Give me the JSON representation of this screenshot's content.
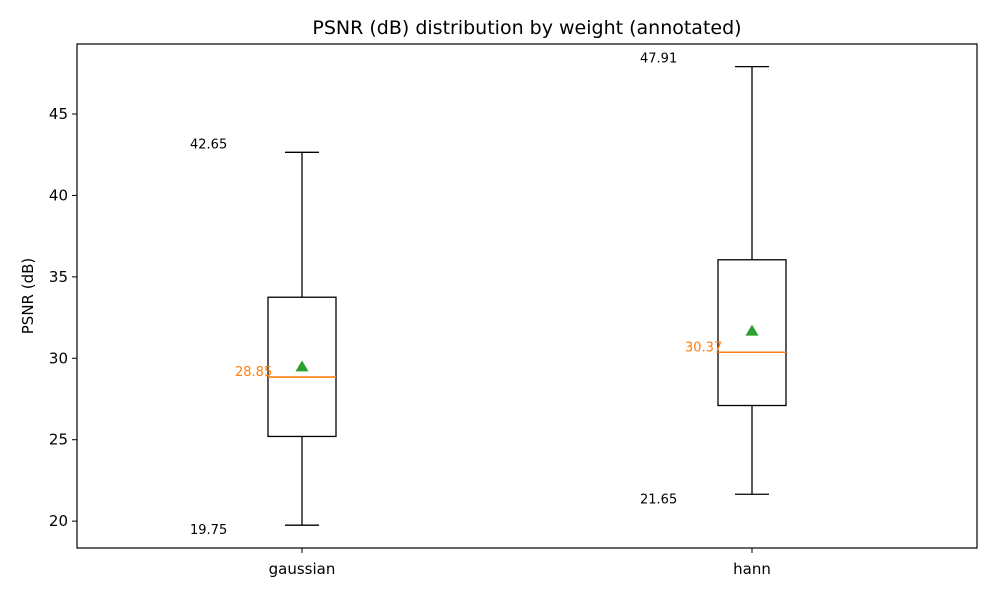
{
  "chart_data": {
    "type": "box",
    "title": "PSNR (dB) distribution by weight (annotated)",
    "ylabel": "PSNR (dB)",
    "xlabel": "",
    "ylim": [
      18.35,
      49.3
    ],
    "yticks": [
      20,
      25,
      30,
      35,
      40,
      45
    ],
    "categories": [
      "gaussian",
      "hann"
    ],
    "boxes": [
      {
        "label": "gaussian",
        "whisker_low": 19.75,
        "q1": 25.2,
        "median": 28.85,
        "q3": 33.75,
        "whisker_high": 42.65,
        "mean": 29.5,
        "annotations": {
          "max": "42.65",
          "min": "19.75",
          "median": "28.85"
        }
      },
      {
        "label": "hann",
        "whisker_low": 21.65,
        "q1": 27.1,
        "median": 30.37,
        "q3": 36.05,
        "whisker_high": 47.91,
        "mean": 31.7,
        "annotations": {
          "max": "47.91",
          "min": "21.65",
          "median": "30.37"
        }
      }
    ],
    "colors": {
      "box": "#000000",
      "median": "#ff7f0e",
      "mean": "#2ca02c"
    }
  }
}
